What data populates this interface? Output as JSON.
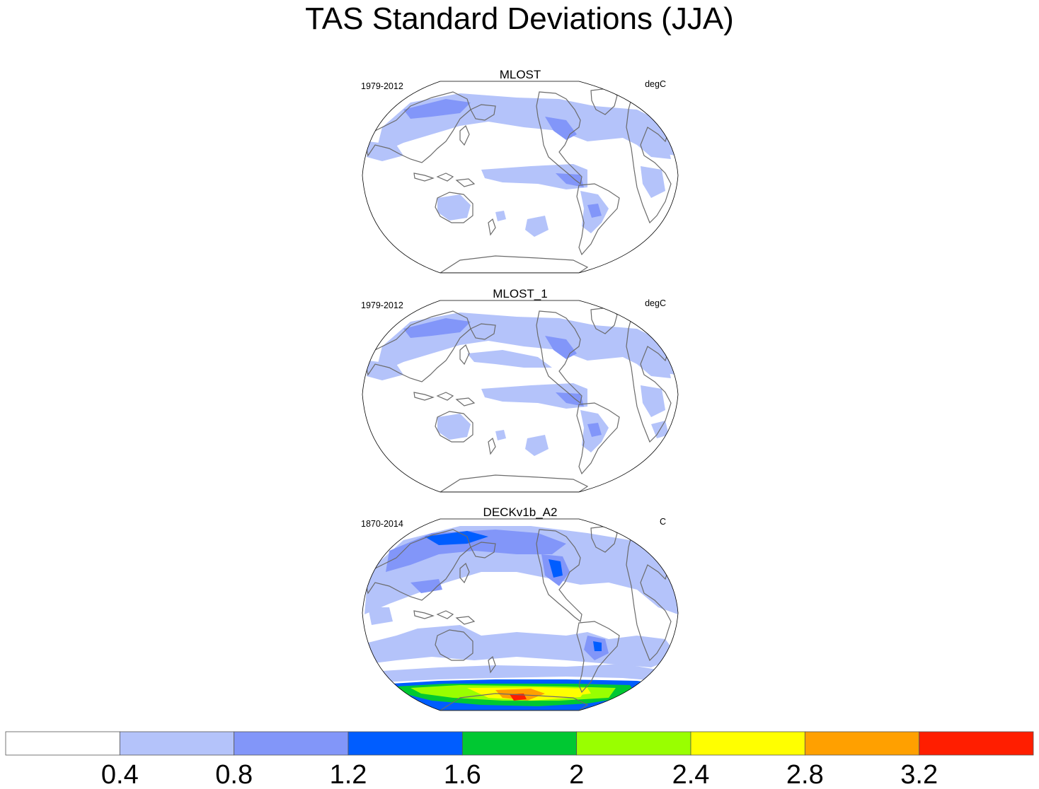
{
  "title": "TAS Standard Deviations (JJA)",
  "chart_data": [
    {
      "type": "heatmap",
      "title": "MLOST",
      "period": "1979-2012",
      "units": "degC",
      "projection": "robinson-pacific-centered"
    },
    {
      "type": "heatmap",
      "title": "MLOST_1",
      "period": "1979-2012",
      "units": "degC",
      "projection": "robinson-pacific-centered"
    },
    {
      "type": "heatmap",
      "title": "DECKv1b_A2",
      "period": "1870-2014",
      "units": "C",
      "projection": "robinson-pacific-centered"
    }
  ],
  "colorbar": {
    "levels": [
      "0.4",
      "0.8",
      "1.2",
      "1.6",
      "2",
      "2.4",
      "2.8",
      "3.2"
    ],
    "colors": [
      "#ffffff",
      "#b4c3fa",
      "#8296f9",
      "#005dff",
      "#00c832",
      "#99ff00",
      "#ffff00",
      "#ffa000",
      "#ff1e00"
    ]
  }
}
